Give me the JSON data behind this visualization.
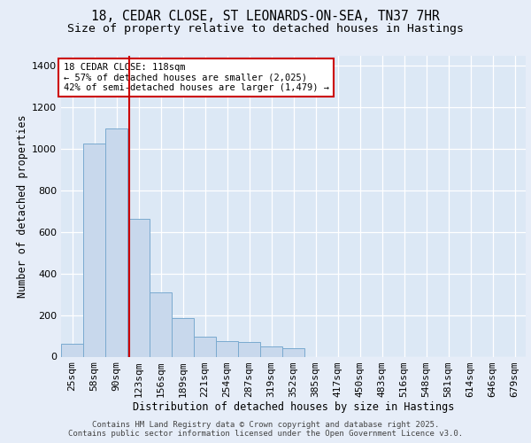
{
  "title1": "18, CEDAR CLOSE, ST LEONARDS-ON-SEA, TN37 7HR",
  "title2": "Size of property relative to detached houses in Hastings",
  "xlabel": "Distribution of detached houses by size in Hastings",
  "ylabel": "Number of detached properties",
  "categories": [
    "25sqm",
    "58sqm",
    "90sqm",
    "123sqm",
    "156sqm",
    "189sqm",
    "221sqm",
    "254sqm",
    "287sqm",
    "319sqm",
    "352sqm",
    "385sqm",
    "417sqm",
    "450sqm",
    "483sqm",
    "516sqm",
    "548sqm",
    "581sqm",
    "614sqm",
    "646sqm",
    "679sqm"
  ],
  "values": [
    60,
    1025,
    1100,
    665,
    310,
    185,
    95,
    75,
    70,
    50,
    40,
    0,
    0,
    0,
    0,
    0,
    0,
    0,
    0,
    0,
    0
  ],
  "bar_color": "#c8d8ec",
  "bar_edge_color": "#7aaacf",
  "vline_color": "#cc0000",
  "vline_index": 2.57,
  "annotation_text": "18 CEDAR CLOSE: 118sqm\n← 57% of detached houses are smaller (2,025)\n42% of semi-detached houses are larger (1,479) →",
  "ann_box_edge_color": "#cc0000",
  "background_color": "#e6edf8",
  "plot_bg_color": "#dce8f5",
  "grid_color": "#c8d8ec",
  "ytick_color": "#c8d8ec",
  "footer1": "Contains HM Land Registry data © Crown copyright and database right 2025.",
  "footer2": "Contains public sector information licensed under the Open Government Licence v3.0.",
  "ylim": [
    0,
    1450
  ],
  "yticks": [
    0,
    200,
    400,
    600,
    800,
    1000,
    1200,
    1400
  ],
  "title_fontsize": 10.5,
  "subtitle_fontsize": 9.5,
  "axis_label_fontsize": 8.5,
  "tick_fontsize": 8,
  "ann_fontsize": 7.5,
  "footer_fontsize": 6.5
}
